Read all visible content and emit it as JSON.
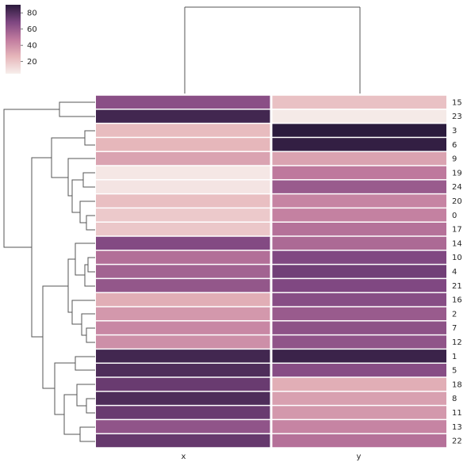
{
  "chart_data": {
    "type": "heatmap",
    "title": "",
    "xlabel": "",
    "ylabel": "",
    "columns": [
      "x",
      "y"
    ],
    "rows": [
      "15",
      "23",
      "3",
      "6",
      "9",
      "19",
      "24",
      "20",
      "0",
      "17",
      "14",
      "10",
      "4",
      "21",
      "16",
      "2",
      "7",
      "12",
      "1",
      "5",
      "18",
      "8",
      "11",
      "13",
      "22"
    ],
    "values": [
      [
        65,
        22
      ],
      [
        84,
        7
      ],
      [
        24,
        90
      ],
      [
        26,
        88
      ],
      [
        33,
        33
      ],
      [
        8,
        48
      ],
      [
        9,
        60
      ],
      [
        23,
        44
      ],
      [
        19,
        45
      ],
      [
        20,
        51
      ],
      [
        67,
        54
      ],
      [
        52,
        68
      ],
      [
        57,
        72
      ],
      [
        62,
        68
      ],
      [
        29,
        66
      ],
      [
        37,
        60
      ],
      [
        43,
        64
      ],
      [
        40,
        63
      ],
      [
        84,
        86
      ],
      [
        81,
        66
      ],
      [
        74,
        29
      ],
      [
        81,
        34
      ],
      [
        74,
        37
      ],
      [
        63,
        44
      ],
      [
        75,
        51
      ]
    ],
    "value_range": [
      5,
      90
    ],
    "colorbar": {
      "ticks": [
        "20",
        "40",
        "60",
        "80"
      ],
      "tick_values": [
        20,
        40,
        60,
        80
      ]
    },
    "colors": {
      "low": "#f7efec",
      "mid_low": "#dfa1ad",
      "mid": "#b06a95",
      "mid_high": "#7e4681",
      "high": "#2b1b3d"
    },
    "dendrogram": {
      "row": true,
      "column": true
    }
  }
}
